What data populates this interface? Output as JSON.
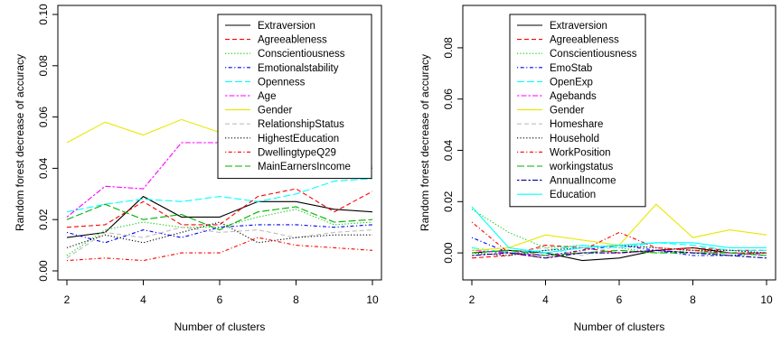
{
  "chart_data": [
    {
      "type": "line",
      "xlabel": "Number of clusters",
      "ylabel": "Random forest decrease of accuracy",
      "x": [
        2,
        3,
        4,
        5,
        6,
        7,
        8,
        9,
        10
      ],
      "xticks": [
        "2",
        "4",
        "6",
        "8",
        "10"
      ],
      "yticks": [
        "0.00",
        "0.02",
        "0.04",
        "0.06",
        "0.08",
        "0.10"
      ],
      "xlim": [
        2,
        10
      ],
      "ylim": [
        0,
        0.1
      ],
      "legend_position": "top-right",
      "series": [
        {
          "name": "Extraversion",
          "color": "#000000",
          "dash": "solid",
          "values": [
            0.013,
            0.015,
            0.029,
            0.021,
            0.021,
            0.027,
            0.027,
            0.024,
            0.023
          ]
        },
        {
          "name": "Agreeableness",
          "color": "#ff0000",
          "dash": "dashed",
          "values": [
            0.017,
            0.018,
            0.027,
            0.018,
            0.018,
            0.029,
            0.032,
            0.023,
            0.031
          ]
        },
        {
          "name": "Conscientiousness",
          "color": "#00cd00",
          "dash": "dotted",
          "values": [
            0.006,
            0.016,
            0.019,
            0.017,
            0.017,
            0.021,
            0.024,
            0.018,
            0.019
          ]
        },
        {
          "name": "Emotionalstability",
          "color": "#0000ff",
          "dash": "dotdash",
          "values": [
            0.015,
            0.011,
            0.016,
            0.013,
            0.017,
            0.018,
            0.018,
            0.017,
            0.018
          ]
        },
        {
          "name": "Openness",
          "color": "#00ffff",
          "dash": "longdash",
          "values": [
            0.023,
            0.026,
            0.028,
            0.027,
            0.029,
            0.027,
            0.03,
            0.035,
            0.036
          ]
        },
        {
          "name": "Age",
          "color": "#ff00ff",
          "dash": "twodash",
          "values": [
            0.021,
            0.033,
            0.032,
            0.05,
            0.05,
            0.046,
            0.036,
            0.045,
            0.04
          ]
        },
        {
          "name": "Gender",
          "color": "#e8e800",
          "dash": "solid",
          "values": [
            0.05,
            0.058,
            0.053,
            0.059,
            0.054,
            0.051,
            0.043,
            0.044,
            0.041
          ]
        },
        {
          "name": "RelationshipStatus",
          "color": "#bebebe",
          "dash": "dashed",
          "values": [
            0.005,
            0.015,
            0.013,
            0.017,
            0.015,
            0.016,
            0.013,
            0.015,
            0.016
          ]
        },
        {
          "name": "HighestEducation",
          "color": "#000000",
          "dash": "dotted",
          "values": [
            0.009,
            0.014,
            0.011,
            0.015,
            0.019,
            0.011,
            0.013,
            0.014,
            0.014
          ]
        },
        {
          "name": "DwellingtypeQ29",
          "color": "#ff0000",
          "dash": "dotdash",
          "values": [
            0.004,
            0.005,
            0.004,
            0.007,
            0.007,
            0.013,
            0.01,
            0.009,
            0.008
          ]
        },
        {
          "name": "MainEarnersIncome",
          "color": "#00b000",
          "dash": "longdash",
          "values": [
            0.02,
            0.026,
            0.02,
            0.022,
            0.016,
            0.023,
            0.025,
            0.019,
            0.02
          ]
        }
      ]
    },
    {
      "type": "line",
      "xlabel": "Number of clusters",
      "ylabel": "Random forest decrease of accuracy",
      "x": [
        2,
        3,
        4,
        5,
        6,
        7,
        8,
        9,
        10
      ],
      "xticks": [
        "2",
        "4",
        "6",
        "8",
        "10"
      ],
      "yticks": [
        "0.00",
        "0.02",
        "0.04",
        "0.06",
        "0.08"
      ],
      "xlim": [
        2,
        10
      ],
      "ylim": [
        -0.007,
        0.093
      ],
      "legend_position": "top-left",
      "series": [
        {
          "name": "Extraversion",
          "color": "#000000",
          "dash": "solid",
          "values": [
            0.0,
            0.001,
            0.0,
            -0.003,
            -0.002,
            0.001,
            0.002,
            0.0,
            0.0
          ]
        },
        {
          "name": "Agreeableness",
          "color": "#ff0000",
          "dash": "dashed",
          "values": [
            -0.002,
            -0.001,
            0.003,
            0.002,
            0.0,
            0.001,
            0.002,
            0.001,
            0.001
          ]
        },
        {
          "name": "Conscientiousness",
          "color": "#00cd00",
          "dash": "dotted",
          "values": [
            0.017,
            0.008,
            0.002,
            0.003,
            0.002,
            0.0,
            0.001,
            -0.001,
            0.0
          ]
        },
        {
          "name": "EmoStab",
          "color": "#0000ff",
          "dash": "dotdash",
          "values": [
            0.006,
            0.0,
            -0.001,
            0.001,
            0.003,
            0.001,
            -0.001,
            -0.001,
            0.0
          ]
        },
        {
          "name": "OpenExp",
          "color": "#00ffff",
          "dash": "longdash",
          "values": [
            0.002,
            0.0,
            0.001,
            0.003,
            0.002,
            0.004,
            0.003,
            0.001,
            0.001
          ]
        },
        {
          "name": "Agebands",
          "color": "#ff00ff",
          "dash": "twodash",
          "values": [
            0.001,
            0.0,
            -0.001,
            0.0,
            0.0,
            0.001,
            0.0,
            0.0,
            -0.001
          ]
        },
        {
          "name": "Gender",
          "color": "#e8e800",
          "dash": "solid",
          "values": [
            0.001,
            0.002,
            0.007,
            0.005,
            0.003,
            0.019,
            0.006,
            0.009,
            0.007
          ]
        },
        {
          "name": "Homeshare",
          "color": "#bebebe",
          "dash": "dashed",
          "values": [
            -0.001,
            0.0,
            0.002,
            -0.001,
            0.003,
            0.002,
            0.001,
            0.0,
            0.0
          ]
        },
        {
          "name": "Household",
          "color": "#000000",
          "dash": "dotted",
          "values": [
            0.0,
            -0.001,
            0.001,
            0.002,
            0.003,
            0.002,
            0.001,
            0.001,
            0.0
          ]
        },
        {
          "name": "WorkPosition",
          "color": "#ff0000",
          "dash": "dotdash",
          "values": [
            0.012,
            0.0,
            -0.002,
            0.001,
            0.008,
            0.002,
            0.001,
            0.0,
            0.0
          ]
        },
        {
          "name": "workingstatus",
          "color": "#00b000",
          "dash": "longdash",
          "values": [
            0.0,
            0.001,
            -0.001,
            0.0,
            0.001,
            0.0,
            0.0,
            0.0,
            -0.001
          ]
        },
        {
          "name": "AnnualIncome",
          "color": "#00008b",
          "dash": "twodash",
          "values": [
            -0.001,
            0.0,
            -0.002,
            0.0,
            0.0,
            0.001,
            0.0,
            -0.001,
            -0.002
          ]
        },
        {
          "name": "Education",
          "color": "#00ffff",
          "dash": "solid",
          "values": [
            0.018,
            0.002,
            0.0,
            0.002,
            0.003,
            0.004,
            0.004,
            0.002,
            0.002
          ]
        }
      ]
    }
  ]
}
